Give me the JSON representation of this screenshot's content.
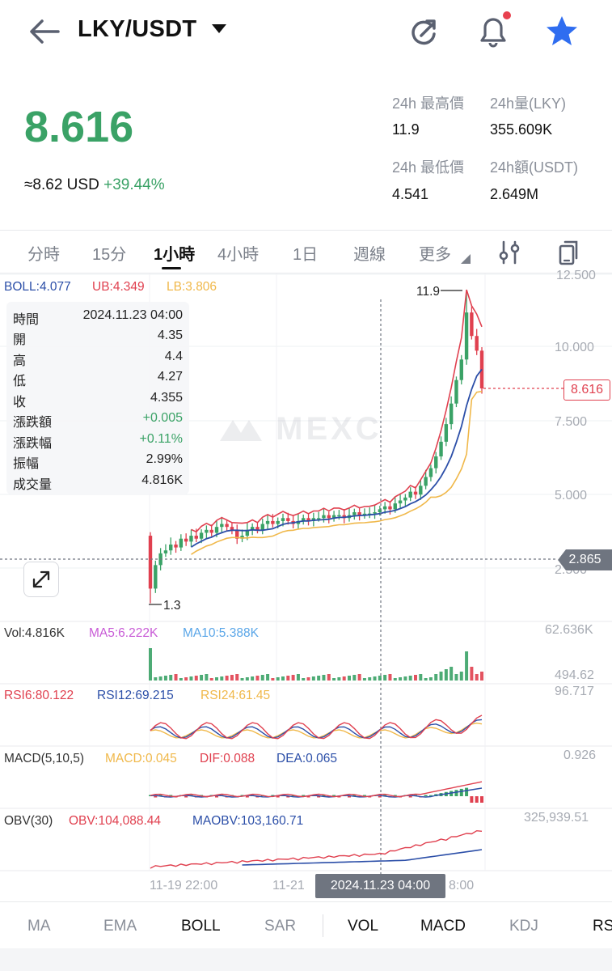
{
  "header": {
    "pair": "LKY/USDT",
    "icons": [
      "back-arrow-icon",
      "caret-down-icon",
      "refresh-icon",
      "bell-icon",
      "star-icon"
    ]
  },
  "price": {
    "last": "8.616",
    "approx_label": "≈8.62 USD",
    "change_pct": "+39.44%",
    "stats": {
      "high_label": "24h 最高價",
      "high_value": "11.9",
      "vol_label": "24h量(LKY)",
      "vol_value": "355.609K",
      "low_label": "24h 最低價",
      "low_value": "4.541",
      "amount_label": "24h額(USDT)",
      "amount_value": "2.649M"
    }
  },
  "tabs": [
    "分時",
    "15分",
    "1小時",
    "4小時",
    "1日",
    "週線",
    "更多"
  ],
  "active_tab": "1小時",
  "boll": {
    "boll": "BOLL:4.077",
    "ub": "UB:4.349",
    "lb": "LB:3.806"
  },
  "price_axis": [
    "12.500",
    "10.000",
    "7.500",
    "5.000",
    "2.500"
  ],
  "price_markers": {
    "high": "11.9",
    "low": "1.3",
    "current": "8.616",
    "crosshair": "2.865"
  },
  "tooltip": [
    {
      "k": "時間",
      "v": "2024.11.23 04:00"
    },
    {
      "k": "開",
      "v": "4.35"
    },
    {
      "k": "高",
      "v": "4.4"
    },
    {
      "k": "低",
      "v": "4.27"
    },
    {
      "k": "收",
      "v": "4.355"
    },
    {
      "k": "漲跌額",
      "v": "+0.005"
    },
    {
      "k": "漲跌幅",
      "v": "+0.11%"
    },
    {
      "k": "振幅",
      "v": "2.99%"
    },
    {
      "k": "成交量",
      "v": "4.816K"
    }
  ],
  "watermark": "MEXC",
  "volume": {
    "vol": "Vol:4.816K",
    "ma5": "MA5:6.222K",
    "ma10": "MA10:5.388K",
    "max": "62.636K",
    "min": "494.62"
  },
  "rsi": {
    "rsi6": "RSI6:80.122",
    "rsi12": "RSI12:69.215",
    "rsi24": "RSI24:61.45",
    "max": "96.717"
  },
  "macd": {
    "label": "MACD(5,10,5)",
    "macd": "MACD:0.045",
    "dif": "DIF:0.088",
    "dea": "DEA:0.065",
    "max": "0.926"
  },
  "obv": {
    "label": "OBV(30)",
    "obv": "OBV:104,088.44",
    "maobv": "MAOBV:103,160.71",
    "max": "325,939.51"
  },
  "time_axis": {
    "t1": "11-19 22:00",
    "t2": "11-21",
    "crosshair": "2024.11.23 04:00",
    "t3": "8:00"
  },
  "indicators": [
    "MA",
    "EMA",
    "BOLL",
    "SAR",
    "VOL",
    "MACD",
    "KDJ",
    "RS"
  ],
  "active_indicators": [
    "BOLL",
    "VOL",
    "MACD"
  ],
  "colors": {
    "up": "#3aa266",
    "down": "#e0404f",
    "boll": "#2c4fa8",
    "ub": "#e0404f",
    "lb": "#f0b84a",
    "rsi24": "#f0b84a"
  },
  "chart_data": {
    "type": "candlestick",
    "time_labels": [
      "11-19 22:00",
      "11-21",
      "2024.11.23 04:00"
    ],
    "price_axis_ticks": [
      2.5,
      5.0,
      7.5,
      10.0,
      12.5
    ],
    "ylim": [
      1.3,
      12.5
    ],
    "closes": [
      1.8,
      2.6,
      3.0,
      3.1,
      3.3,
      3.2,
      3.5,
      3.4,
      3.6,
      3.5,
      3.7,
      3.8,
      3.7,
      3.9,
      4.0,
      3.9,
      3.8,
      3.5,
      3.6,
      3.8,
      3.9,
      3.8,
      4.0,
      4.1,
      4.0,
      4.1,
      4.2,
      4.1,
      4.0,
      4.1,
      4.2,
      4.1,
      4.2,
      4.2,
      4.3,
      4.2,
      4.3,
      4.3,
      4.2,
      4.3,
      4.4,
      4.3,
      4.35,
      4.355,
      4.4,
      4.5,
      4.6,
      4.5,
      4.7,
      4.8,
      4.9,
      5.1,
      5.0,
      5.3,
      5.6,
      5.9,
      6.3,
      6.8,
      7.4,
      8.1,
      8.9,
      9.6,
      11.2,
      10.4,
      9.9,
      8.616
    ],
    "high": 11.9,
    "low": 1.3,
    "last": 8.616,
    "series_bands": [
      "BOLL",
      "UB",
      "LB"
    ]
  }
}
